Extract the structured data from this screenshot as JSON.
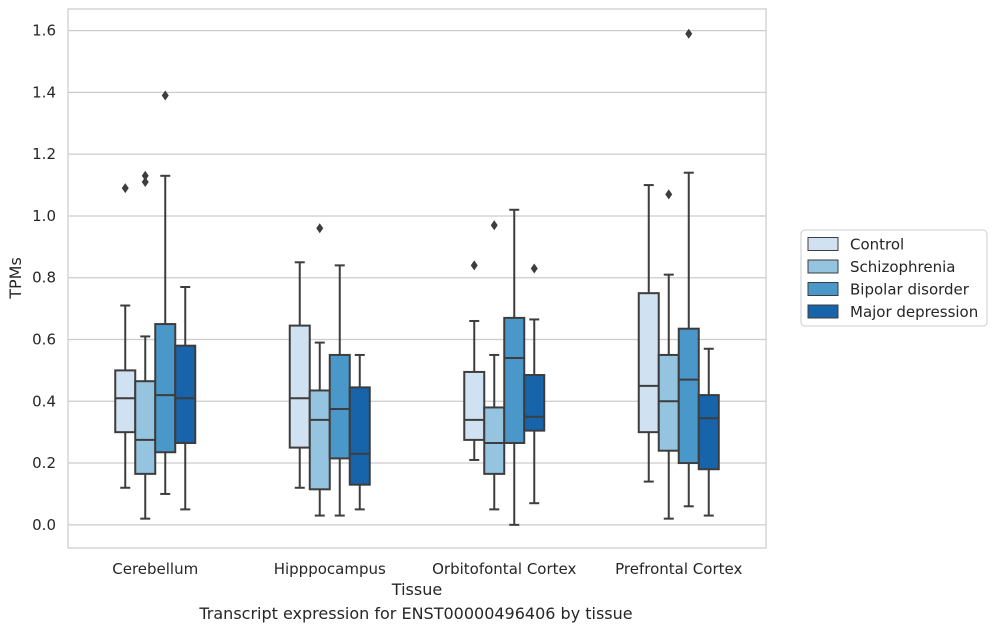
{
  "caption": "Transcript expression for ENST00000496406 by tissue",
  "chart_data": {
    "type": "box",
    "xlabel": "Tissue",
    "ylabel": "TPMs",
    "ylim": [
      -0.075,
      1.67
    ],
    "yticks": [
      0.0,
      0.2,
      0.4,
      0.6,
      0.8,
      1.0,
      1.2,
      1.4,
      1.6
    ],
    "yticklabels": [
      "0.0",
      "0.2",
      "0.4",
      "0.6",
      "0.8",
      "1.0",
      "1.2",
      "1.4",
      "1.6"
    ],
    "grid": "horizontal",
    "legend_position": "right",
    "categories": [
      "Cerebellum",
      "Hipppocampus",
      "Orbitofontal Cortex",
      "Prefrontal Cortex"
    ],
    "series": [
      {
        "name": "Control",
        "color": "#d0e1f2",
        "boxes": [
          {
            "whislo": 0.12,
            "q1": 0.3,
            "med": 0.41,
            "q3": 0.5,
            "whishi": 0.71,
            "fliers": [
              1.09
            ]
          },
          {
            "whislo": 0.12,
            "q1": 0.25,
            "med": 0.41,
            "q3": 0.645,
            "whishi": 0.85,
            "fliers": []
          },
          {
            "whislo": 0.21,
            "q1": 0.275,
            "med": 0.34,
            "q3": 0.495,
            "whishi": 0.66,
            "fliers": [
              0.84
            ]
          },
          {
            "whislo": 0.14,
            "q1": 0.3,
            "med": 0.45,
            "q3": 0.75,
            "whishi": 1.1,
            "fliers": []
          }
        ]
      },
      {
        "name": "Schizophrenia",
        "color": "#94c4df",
        "boxes": [
          {
            "whislo": 0.02,
            "q1": 0.165,
            "med": 0.275,
            "q3": 0.465,
            "whishi": 0.61,
            "fliers": [
              1.11,
              1.13
            ]
          },
          {
            "whislo": 0.03,
            "q1": 0.115,
            "med": 0.34,
            "q3": 0.435,
            "whishi": 0.59,
            "fliers": [
              0.96
            ]
          },
          {
            "whislo": 0.05,
            "q1": 0.165,
            "med": 0.265,
            "q3": 0.38,
            "whishi": 0.55,
            "fliers": [
              0.97
            ]
          },
          {
            "whislo": 0.02,
            "q1": 0.24,
            "med": 0.4,
            "q3": 0.55,
            "whishi": 0.81,
            "fliers": [
              1.07
            ]
          }
        ]
      },
      {
        "name": "Bipolar disorder",
        "color": "#4a98c9",
        "boxes": [
          {
            "whislo": 0.1,
            "q1": 0.235,
            "med": 0.42,
            "q3": 0.65,
            "whishi": 1.13,
            "fliers": [
              1.39
            ]
          },
          {
            "whislo": 0.03,
            "q1": 0.215,
            "med": 0.375,
            "q3": 0.55,
            "whishi": 0.84,
            "fliers": []
          },
          {
            "whislo": 0.0,
            "q1": 0.265,
            "med": 0.54,
            "q3": 0.67,
            "whishi": 1.02,
            "fliers": []
          },
          {
            "whislo": 0.06,
            "q1": 0.2,
            "med": 0.47,
            "q3": 0.635,
            "whishi": 1.14,
            "fliers": [
              1.59
            ]
          }
        ]
      },
      {
        "name": "Major depression",
        "color": "#1764ab",
        "boxes": [
          {
            "whislo": 0.05,
            "q1": 0.265,
            "med": 0.41,
            "q3": 0.58,
            "whishi": 0.77,
            "fliers": []
          },
          {
            "whislo": 0.05,
            "q1": 0.13,
            "med": 0.23,
            "q3": 0.445,
            "whishi": 0.55,
            "fliers": []
          },
          {
            "whislo": 0.07,
            "q1": 0.305,
            "med": 0.35,
            "q3": 0.485,
            "whishi": 0.665,
            "fliers": [
              0.83
            ]
          },
          {
            "whislo": 0.03,
            "q1": 0.18,
            "med": 0.345,
            "q3": 0.42,
            "whishi": 0.57,
            "fliers": []
          }
        ]
      }
    ]
  }
}
